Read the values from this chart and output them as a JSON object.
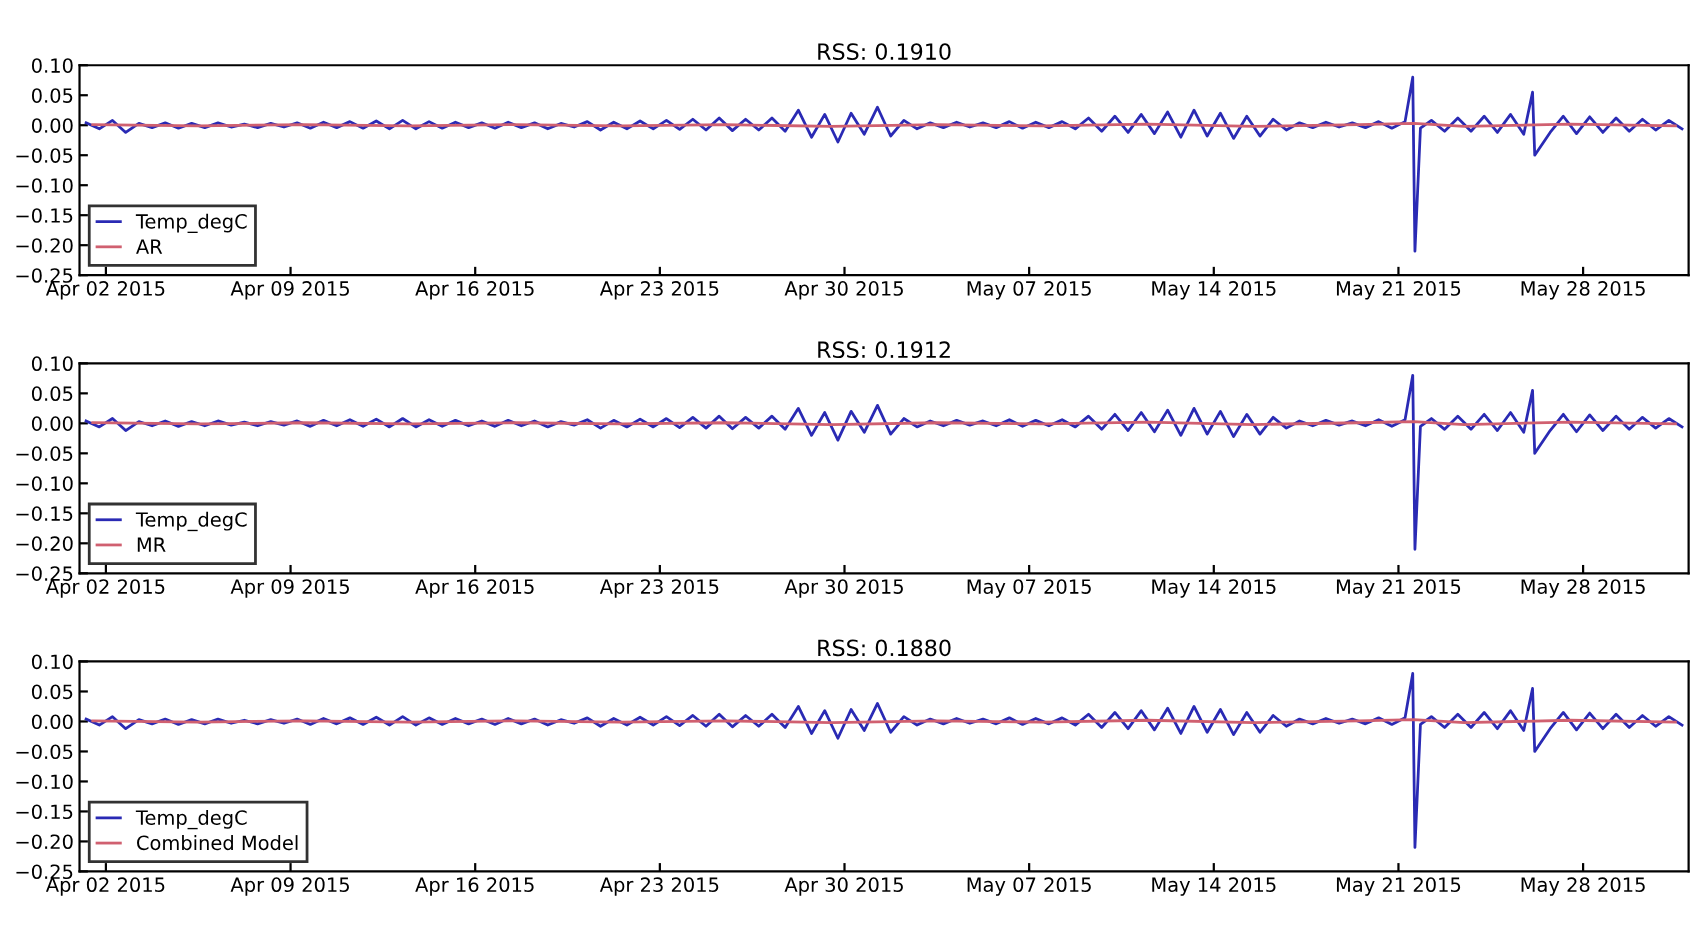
{
  "chart_data": [
    {
      "type": "line",
      "title": "RSS: 0.1910",
      "legend": "lower left",
      "grid": false,
      "xlim": [
        "2015-04-01",
        "2015-06-01"
      ],
      "ylim": [
        -0.25,
        0.1
      ],
      "xticks": [
        {
          "value": "2015-04-02",
          "label": "Apr 02 2015"
        },
        {
          "value": "2015-04-09",
          "label": "Apr 09 2015"
        },
        {
          "value": "2015-04-16",
          "label": "Apr 16 2015"
        },
        {
          "value": "2015-04-23",
          "label": "Apr 23 2015"
        },
        {
          "value": "2015-04-30",
          "label": "Apr 30 2015"
        },
        {
          "value": "2015-05-07",
          "label": "May 07 2015"
        },
        {
          "value": "2015-05-14",
          "label": "May 14 2015"
        },
        {
          "value": "2015-05-21",
          "label": "May 21 2015"
        },
        {
          "value": "2015-05-28",
          "label": "May 28 2015"
        }
      ],
      "yticks": [
        {
          "value": -0.25,
          "label": "−0.25"
        },
        {
          "value": -0.2,
          "label": "−0.20"
        },
        {
          "value": -0.15,
          "label": "−0.15"
        },
        {
          "value": -0.1,
          "label": "−0.10"
        },
        {
          "value": -0.05,
          "label": "−0.05"
        },
        {
          "value": 0,
          "label": "0.00"
        },
        {
          "value": 0.05,
          "label": "0.05"
        },
        {
          "value": 0.1,
          "label": "0.10"
        }
      ],
      "series": [
        {
          "name": "Temp_degC",
          "color": "#2a2ab4",
          "x": [
            "2015-04-01T06:00",
            "2015-04-01T18:00",
            "2015-04-02T06:00",
            "2015-04-02T18:00",
            "2015-04-03T06:00",
            "2015-04-03T18:00",
            "2015-04-04T06:00",
            "2015-04-04T18:00",
            "2015-04-05T06:00",
            "2015-04-05T18:00",
            "2015-04-06T06:00",
            "2015-04-06T18:00",
            "2015-04-07T06:00",
            "2015-04-07T18:00",
            "2015-04-08T06:00",
            "2015-04-08T18:00",
            "2015-04-09T06:00",
            "2015-04-09T18:00",
            "2015-04-10T06:00",
            "2015-04-10T18:00",
            "2015-04-11T06:00",
            "2015-04-11T18:00",
            "2015-04-12T06:00",
            "2015-04-12T18:00",
            "2015-04-13T06:00",
            "2015-04-13T18:00",
            "2015-04-14T06:00",
            "2015-04-14T18:00",
            "2015-04-15T06:00",
            "2015-04-15T18:00",
            "2015-04-16T06:00",
            "2015-04-16T18:00",
            "2015-04-17T06:00",
            "2015-04-17T18:00",
            "2015-04-18T06:00",
            "2015-04-18T18:00",
            "2015-04-19T06:00",
            "2015-04-19T18:00",
            "2015-04-20T06:00",
            "2015-04-20T18:00",
            "2015-04-21T06:00",
            "2015-04-21T18:00",
            "2015-04-22T06:00",
            "2015-04-22T18:00",
            "2015-04-23T06:00",
            "2015-04-23T18:00",
            "2015-04-24T06:00",
            "2015-04-24T18:00",
            "2015-04-25T06:00",
            "2015-04-25T18:00",
            "2015-04-26T06:00",
            "2015-04-26T18:00",
            "2015-04-27T06:00",
            "2015-04-27T18:00",
            "2015-04-28T06:00",
            "2015-04-28T18:00",
            "2015-04-29T06:00",
            "2015-04-29T18:00",
            "2015-04-30T06:00",
            "2015-04-30T18:00",
            "2015-05-01T06:00",
            "2015-05-01T18:00",
            "2015-05-02T06:00",
            "2015-05-02T18:00",
            "2015-05-03T06:00",
            "2015-05-03T18:00",
            "2015-05-04T06:00",
            "2015-05-04T18:00",
            "2015-05-05T06:00",
            "2015-05-05T18:00",
            "2015-05-06T06:00",
            "2015-05-06T18:00",
            "2015-05-07T06:00",
            "2015-05-07T18:00",
            "2015-05-08T06:00",
            "2015-05-08T18:00",
            "2015-05-09T06:00",
            "2015-05-09T18:00",
            "2015-05-10T06:00",
            "2015-05-10T18:00",
            "2015-05-11T06:00",
            "2015-05-11T18:00",
            "2015-05-12T06:00",
            "2015-05-12T18:00",
            "2015-05-13T06:00",
            "2015-05-13T18:00",
            "2015-05-14T06:00",
            "2015-05-14T18:00",
            "2015-05-15T06:00",
            "2015-05-15T18:00",
            "2015-05-16T06:00",
            "2015-05-16T18:00",
            "2015-05-17T06:00",
            "2015-05-17T18:00",
            "2015-05-18T06:00",
            "2015-05-18T18:00",
            "2015-05-19T06:00",
            "2015-05-19T18:00",
            "2015-05-20T06:00",
            "2015-05-20T18:00",
            "2015-05-21T06:00",
            "2015-05-21T13:00",
            "2015-05-21T15:00",
            "2015-05-21T20:00",
            "2015-05-22T06:00",
            "2015-05-22T18:00",
            "2015-05-23T06:00",
            "2015-05-23T18:00",
            "2015-05-24T06:00",
            "2015-05-24T18:00",
            "2015-05-25T06:00",
            "2015-05-25T18:00",
            "2015-05-26T02:00",
            "2015-05-26T04:00",
            "2015-05-26T18:00",
            "2015-05-27T06:00",
            "2015-05-27T18:00",
            "2015-05-28T06:00",
            "2015-05-28T18:00",
            "2015-05-29T06:00",
            "2015-05-29T18:00",
            "2015-05-30T06:00",
            "2015-05-30T18:00",
            "2015-05-31T06:00",
            "2015-05-31T18:00"
          ],
          "values": [
            0.004,
            -0.006,
            0.008,
            -0.012,
            0.003,
            -0.004,
            0.004,
            -0.005,
            0.003,
            -0.004,
            0.004,
            -0.003,
            0.002,
            -0.004,
            0.003,
            -0.003,
            0.004,
            -0.005,
            0.005,
            -0.004,
            0.006,
            -0.005,
            0.007,
            -0.006,
            0.008,
            -0.006,
            0.006,
            -0.005,
            0.005,
            -0.004,
            0.004,
            -0.005,
            0.005,
            -0.004,
            0.004,
            -0.006,
            0.003,
            -0.003,
            0.006,
            -0.008,
            0.005,
            -0.006,
            0.007,
            -0.006,
            0.008,
            -0.007,
            0.01,
            -0.008,
            0.012,
            -0.009,
            0.01,
            -0.008,
            0.012,
            -0.01,
            0.025,
            -0.02,
            0.018,
            -0.028,
            0.02,
            -0.015,
            0.03,
            -0.018,
            0.008,
            -0.006,
            0.004,
            -0.004,
            0.005,
            -0.003,
            0.004,
            -0.004,
            0.006,
            -0.005,
            0.005,
            -0.004,
            0.006,
            -0.006,
            0.012,
            -0.01,
            0.015,
            -0.012,
            0.018,
            -0.014,
            0.022,
            -0.02,
            0.025,
            -0.018,
            0.02,
            -0.022,
            0.015,
            -0.018,
            0.01,
            -0.008,
            0.004,
            -0.004,
            0.005,
            -0.003,
            0.004,
            -0.004,
            0.006,
            -0.005,
            0.006,
            0.08,
            -0.21,
            -0.005,
            0.008,
            -0.01,
            0.012,
            -0.01,
            0.015,
            -0.012,
            0.018,
            -0.015,
            0.055,
            -0.05,
            -0.012,
            0.015,
            -0.014,
            0.014,
            -0.012,
            0.012,
            -0.01,
            0.01,
            -0.008,
            0.008,
            -0.006
          ]
        },
        {
          "name": "AR",
          "color": "#d06070",
          "x": [
            "2015-04-01T12:00",
            "2015-04-05T12:00",
            "2015-04-09T12:00",
            "2015-04-13T12:00",
            "2015-04-17T12:00",
            "2015-04-21T12:00",
            "2015-04-25T12:00",
            "2015-04-29T12:00",
            "2015-05-03T12:00",
            "2015-05-07T12:00",
            "2015-05-11T12:00",
            "2015-05-15T12:00",
            "2015-05-19T12:00",
            "2015-05-21T14:00",
            "2015-05-23T12:00",
            "2015-05-27T12:00",
            "2015-05-31T12:00"
          ],
          "values": [
            0.001,
            -0.001,
            0.001,
            -0.001,
            0.001,
            -0.001,
            0.001,
            -0.002,
            0.001,
            -0.001,
            0.002,
            -0.002,
            0.001,
            0.003,
            -0.002,
            0.002,
            -0.001
          ]
        }
      ]
    },
    {
      "type": "line",
      "title": "RSS: 0.1912",
      "legend": "lower left",
      "grid": false,
      "xlim": [
        "2015-04-01",
        "2015-06-01"
      ],
      "ylim": [
        -0.25,
        0.1
      ],
      "xticks": [
        {
          "value": "2015-04-02",
          "label": "Apr 02 2015"
        },
        {
          "value": "2015-04-09",
          "label": "Apr 09 2015"
        },
        {
          "value": "2015-04-16",
          "label": "Apr 16 2015"
        },
        {
          "value": "2015-04-23",
          "label": "Apr 23 2015"
        },
        {
          "value": "2015-04-30",
          "label": "Apr 30 2015"
        },
        {
          "value": "2015-05-07",
          "label": "May 07 2015"
        },
        {
          "value": "2015-05-14",
          "label": "May 14 2015"
        },
        {
          "value": "2015-05-21",
          "label": "May 21 2015"
        },
        {
          "value": "2015-05-28",
          "label": "May 28 2015"
        }
      ],
      "yticks": [
        {
          "value": -0.25,
          "label": "−0.25"
        },
        {
          "value": -0.2,
          "label": "−0.20"
        },
        {
          "value": -0.15,
          "label": "−0.15"
        },
        {
          "value": -0.1,
          "label": "−0.10"
        },
        {
          "value": -0.05,
          "label": "−0.05"
        },
        {
          "value": 0,
          "label": "0.00"
        },
        {
          "value": 0.05,
          "label": "0.05"
        },
        {
          "value": 0.1,
          "label": "0.10"
        }
      ],
      "series": [
        {
          "name": "Temp_degC",
          "color": "#2a2ab4",
          "x": [
            "2015-04-01T06:00",
            "2015-04-01T18:00",
            "2015-04-02T06:00",
            "2015-04-02T18:00",
            "2015-04-03T06:00",
            "2015-04-03T18:00",
            "2015-04-04T06:00",
            "2015-04-04T18:00",
            "2015-04-05T06:00",
            "2015-04-05T18:00",
            "2015-04-06T06:00",
            "2015-04-06T18:00",
            "2015-04-07T06:00",
            "2015-04-07T18:00",
            "2015-04-08T06:00",
            "2015-04-08T18:00",
            "2015-04-09T06:00",
            "2015-04-09T18:00",
            "2015-04-10T06:00",
            "2015-04-10T18:00",
            "2015-04-11T06:00",
            "2015-04-11T18:00",
            "2015-04-12T06:00",
            "2015-04-12T18:00",
            "2015-04-13T06:00",
            "2015-04-13T18:00",
            "2015-04-14T06:00",
            "2015-04-14T18:00",
            "2015-04-15T06:00",
            "2015-04-15T18:00",
            "2015-04-16T06:00",
            "2015-04-16T18:00",
            "2015-04-17T06:00",
            "2015-04-17T18:00",
            "2015-04-18T06:00",
            "2015-04-18T18:00",
            "2015-04-19T06:00",
            "2015-04-19T18:00",
            "2015-04-20T06:00",
            "2015-04-20T18:00",
            "2015-04-21T06:00",
            "2015-04-21T18:00",
            "2015-04-22T06:00",
            "2015-04-22T18:00",
            "2015-04-23T06:00",
            "2015-04-23T18:00",
            "2015-04-24T06:00",
            "2015-04-24T18:00",
            "2015-04-25T06:00",
            "2015-04-25T18:00",
            "2015-04-26T06:00",
            "2015-04-26T18:00",
            "2015-04-27T06:00",
            "2015-04-27T18:00",
            "2015-04-28T06:00",
            "2015-04-28T18:00",
            "2015-04-29T06:00",
            "2015-04-29T18:00",
            "2015-04-30T06:00",
            "2015-04-30T18:00",
            "2015-05-01T06:00",
            "2015-05-01T18:00",
            "2015-05-02T06:00",
            "2015-05-02T18:00",
            "2015-05-03T06:00",
            "2015-05-03T18:00",
            "2015-05-04T06:00",
            "2015-05-04T18:00",
            "2015-05-05T06:00",
            "2015-05-05T18:00",
            "2015-05-06T06:00",
            "2015-05-06T18:00",
            "2015-05-07T06:00",
            "2015-05-07T18:00",
            "2015-05-08T06:00",
            "2015-05-08T18:00",
            "2015-05-09T06:00",
            "2015-05-09T18:00",
            "2015-05-10T06:00",
            "2015-05-10T18:00",
            "2015-05-11T06:00",
            "2015-05-11T18:00",
            "2015-05-12T06:00",
            "2015-05-12T18:00",
            "2015-05-13T06:00",
            "2015-05-13T18:00",
            "2015-05-14T06:00",
            "2015-05-14T18:00",
            "2015-05-15T06:00",
            "2015-05-15T18:00",
            "2015-05-16T06:00",
            "2015-05-16T18:00",
            "2015-05-17T06:00",
            "2015-05-17T18:00",
            "2015-05-18T06:00",
            "2015-05-18T18:00",
            "2015-05-19T06:00",
            "2015-05-19T18:00",
            "2015-05-20T06:00",
            "2015-05-20T18:00",
            "2015-05-21T06:00",
            "2015-05-21T13:00",
            "2015-05-21T15:00",
            "2015-05-21T20:00",
            "2015-05-22T06:00",
            "2015-05-22T18:00",
            "2015-05-23T06:00",
            "2015-05-23T18:00",
            "2015-05-24T06:00",
            "2015-05-24T18:00",
            "2015-05-25T06:00",
            "2015-05-25T18:00",
            "2015-05-26T02:00",
            "2015-05-26T04:00",
            "2015-05-26T18:00",
            "2015-05-27T06:00",
            "2015-05-27T18:00",
            "2015-05-28T06:00",
            "2015-05-28T18:00",
            "2015-05-29T06:00",
            "2015-05-29T18:00",
            "2015-05-30T06:00",
            "2015-05-30T18:00",
            "2015-05-31T06:00",
            "2015-05-31T18:00"
          ],
          "values": [
            0.004,
            -0.006,
            0.008,
            -0.012,
            0.003,
            -0.004,
            0.004,
            -0.005,
            0.003,
            -0.004,
            0.004,
            -0.003,
            0.002,
            -0.004,
            0.003,
            -0.003,
            0.004,
            -0.005,
            0.005,
            -0.004,
            0.006,
            -0.005,
            0.007,
            -0.006,
            0.008,
            -0.006,
            0.006,
            -0.005,
            0.005,
            -0.004,
            0.004,
            -0.005,
            0.005,
            -0.004,
            0.004,
            -0.006,
            0.003,
            -0.003,
            0.006,
            -0.008,
            0.005,
            -0.006,
            0.007,
            -0.006,
            0.008,
            -0.007,
            0.01,
            -0.008,
            0.012,
            -0.009,
            0.01,
            -0.008,
            0.012,
            -0.01,
            0.025,
            -0.02,
            0.018,
            -0.028,
            0.02,
            -0.015,
            0.03,
            -0.018,
            0.008,
            -0.006,
            0.004,
            -0.004,
            0.005,
            -0.003,
            0.004,
            -0.004,
            0.006,
            -0.005,
            0.005,
            -0.004,
            0.006,
            -0.006,
            0.012,
            -0.01,
            0.015,
            -0.012,
            0.018,
            -0.014,
            0.022,
            -0.02,
            0.025,
            -0.018,
            0.02,
            -0.022,
            0.015,
            -0.018,
            0.01,
            -0.008,
            0.004,
            -0.004,
            0.005,
            -0.003,
            0.004,
            -0.004,
            0.006,
            -0.005,
            0.006,
            0.08,
            -0.21,
            -0.005,
            0.008,
            -0.01,
            0.012,
            -0.01,
            0.015,
            -0.012,
            0.018,
            -0.015,
            0.055,
            -0.05,
            -0.012,
            0.015,
            -0.014,
            0.014,
            -0.012,
            0.012,
            -0.01,
            0.01,
            -0.008,
            0.008,
            -0.006
          ]
        },
        {
          "name": "MR",
          "color": "#d06070",
          "x": [
            "2015-04-01T12:00",
            "2015-04-05T12:00",
            "2015-04-09T12:00",
            "2015-04-13T12:00",
            "2015-04-17T12:00",
            "2015-04-21T12:00",
            "2015-04-25T12:00",
            "2015-04-29T12:00",
            "2015-05-03T12:00",
            "2015-05-07T12:00",
            "2015-05-11T12:00",
            "2015-05-15T12:00",
            "2015-05-19T12:00",
            "2015-05-21T14:00",
            "2015-05-23T12:00",
            "2015-05-27T12:00",
            "2015-05-31T12:00"
          ],
          "values": [
            0.001,
            -0.001,
            0.001,
            -0.001,
            0.001,
            -0.001,
            0.001,
            -0.002,
            0.001,
            -0.001,
            0.002,
            -0.002,
            0.001,
            0.003,
            -0.002,
            0.002,
            -0.001
          ]
        }
      ]
    },
    {
      "type": "line",
      "title": "RSS: 0.1880",
      "legend": "lower left",
      "grid": false,
      "xlim": [
        "2015-04-01",
        "2015-06-01"
      ],
      "ylim": [
        -0.25,
        0.1
      ],
      "xticks": [
        {
          "value": "2015-04-02",
          "label": "Apr 02 2015"
        },
        {
          "value": "2015-04-09",
          "label": "Apr 09 2015"
        },
        {
          "value": "2015-04-16",
          "label": "Apr 16 2015"
        },
        {
          "value": "2015-04-23",
          "label": "Apr 23 2015"
        },
        {
          "value": "2015-04-30",
          "label": "Apr 30 2015"
        },
        {
          "value": "2015-05-07",
          "label": "May 07 2015"
        },
        {
          "value": "2015-05-14",
          "label": "May 14 2015"
        },
        {
          "value": "2015-05-21",
          "label": "May 21 2015"
        },
        {
          "value": "2015-05-28",
          "label": "May 28 2015"
        }
      ],
      "yticks": [
        {
          "value": -0.25,
          "label": "−0.25"
        },
        {
          "value": -0.2,
          "label": "−0.20"
        },
        {
          "value": -0.15,
          "label": "−0.15"
        },
        {
          "value": -0.1,
          "label": "−0.10"
        },
        {
          "value": -0.05,
          "label": "−0.05"
        },
        {
          "value": 0,
          "label": "0.00"
        },
        {
          "value": 0.05,
          "label": "0.05"
        },
        {
          "value": 0.1,
          "label": "0.10"
        }
      ],
      "series": [
        {
          "name": "Temp_degC",
          "color": "#2a2ab4",
          "x": [
            "2015-04-01T06:00",
            "2015-04-01T18:00",
            "2015-04-02T06:00",
            "2015-04-02T18:00",
            "2015-04-03T06:00",
            "2015-04-03T18:00",
            "2015-04-04T06:00",
            "2015-04-04T18:00",
            "2015-04-05T06:00",
            "2015-04-05T18:00",
            "2015-04-06T06:00",
            "2015-04-06T18:00",
            "2015-04-07T06:00",
            "2015-04-07T18:00",
            "2015-04-08T06:00",
            "2015-04-08T18:00",
            "2015-04-09T06:00",
            "2015-04-09T18:00",
            "2015-04-10T06:00",
            "2015-04-10T18:00",
            "2015-04-11T06:00",
            "2015-04-11T18:00",
            "2015-04-12T06:00",
            "2015-04-12T18:00",
            "2015-04-13T06:00",
            "2015-04-13T18:00",
            "2015-04-14T06:00",
            "2015-04-14T18:00",
            "2015-04-15T06:00",
            "2015-04-15T18:00",
            "2015-04-16T06:00",
            "2015-04-16T18:00",
            "2015-04-17T06:00",
            "2015-04-17T18:00",
            "2015-04-18T06:00",
            "2015-04-18T18:00",
            "2015-04-19T06:00",
            "2015-04-19T18:00",
            "2015-04-20T06:00",
            "2015-04-20T18:00",
            "2015-04-21T06:00",
            "2015-04-21T18:00",
            "2015-04-22T06:00",
            "2015-04-22T18:00",
            "2015-04-23T06:00",
            "2015-04-23T18:00",
            "2015-04-24T06:00",
            "2015-04-24T18:00",
            "2015-04-25T06:00",
            "2015-04-25T18:00",
            "2015-04-26T06:00",
            "2015-04-26T18:00",
            "2015-04-27T06:00",
            "2015-04-27T18:00",
            "2015-04-28T06:00",
            "2015-04-28T18:00",
            "2015-04-29T06:00",
            "2015-04-29T18:00",
            "2015-04-30T06:00",
            "2015-04-30T18:00",
            "2015-05-01T06:00",
            "2015-05-01T18:00",
            "2015-05-02T06:00",
            "2015-05-02T18:00",
            "2015-05-03T06:00",
            "2015-05-03T18:00",
            "2015-05-04T06:00",
            "2015-05-04T18:00",
            "2015-05-05T06:00",
            "2015-05-05T18:00",
            "2015-05-06T06:00",
            "2015-05-06T18:00",
            "2015-05-07T06:00",
            "2015-05-07T18:00",
            "2015-05-08T06:00",
            "2015-05-08T18:00",
            "2015-05-09T06:00",
            "2015-05-09T18:00",
            "2015-05-10T06:00",
            "2015-05-10T18:00",
            "2015-05-11T06:00",
            "2015-05-11T18:00",
            "2015-05-12T06:00",
            "2015-05-12T18:00",
            "2015-05-13T06:00",
            "2015-05-13T18:00",
            "2015-05-14T06:00",
            "2015-05-14T18:00",
            "2015-05-15T06:00",
            "2015-05-15T18:00",
            "2015-05-16T06:00",
            "2015-05-16T18:00",
            "2015-05-17T06:00",
            "2015-05-17T18:00",
            "2015-05-18T06:00",
            "2015-05-18T18:00",
            "2015-05-19T06:00",
            "2015-05-19T18:00",
            "2015-05-20T06:00",
            "2015-05-20T18:00",
            "2015-05-21T06:00",
            "2015-05-21T13:00",
            "2015-05-21T15:00",
            "2015-05-21T20:00",
            "2015-05-22T06:00",
            "2015-05-22T18:00",
            "2015-05-23T06:00",
            "2015-05-23T18:00",
            "2015-05-24T06:00",
            "2015-05-24T18:00",
            "2015-05-25T06:00",
            "2015-05-25T18:00",
            "2015-05-26T02:00",
            "2015-05-26T04:00",
            "2015-05-26T18:00",
            "2015-05-27T06:00",
            "2015-05-27T18:00",
            "2015-05-28T06:00",
            "2015-05-28T18:00",
            "2015-05-29T06:00",
            "2015-05-29T18:00",
            "2015-05-30T06:00",
            "2015-05-30T18:00",
            "2015-05-31T06:00",
            "2015-05-31T18:00"
          ],
          "values": [
            0.004,
            -0.006,
            0.008,
            -0.012,
            0.003,
            -0.004,
            0.004,
            -0.005,
            0.003,
            -0.004,
            0.004,
            -0.003,
            0.002,
            -0.004,
            0.003,
            -0.003,
            0.004,
            -0.005,
            0.005,
            -0.004,
            0.006,
            -0.005,
            0.007,
            -0.006,
            0.008,
            -0.006,
            0.006,
            -0.005,
            0.005,
            -0.004,
            0.004,
            -0.005,
            0.005,
            -0.004,
            0.004,
            -0.006,
            0.003,
            -0.003,
            0.006,
            -0.008,
            0.005,
            -0.006,
            0.007,
            -0.006,
            0.008,
            -0.007,
            0.01,
            -0.008,
            0.012,
            -0.009,
            0.01,
            -0.008,
            0.012,
            -0.01,
            0.025,
            -0.02,
            0.018,
            -0.028,
            0.02,
            -0.015,
            0.03,
            -0.018,
            0.008,
            -0.006,
            0.004,
            -0.004,
            0.005,
            -0.003,
            0.004,
            -0.004,
            0.006,
            -0.005,
            0.005,
            -0.004,
            0.006,
            -0.006,
            0.012,
            -0.01,
            0.015,
            -0.012,
            0.018,
            -0.014,
            0.022,
            -0.02,
            0.025,
            -0.018,
            0.02,
            -0.022,
            0.015,
            -0.018,
            0.01,
            -0.008,
            0.004,
            -0.004,
            0.005,
            -0.003,
            0.004,
            -0.004,
            0.006,
            -0.005,
            0.006,
            0.08,
            -0.21,
            -0.005,
            0.008,
            -0.01,
            0.012,
            -0.01,
            0.015,
            -0.012,
            0.018,
            -0.015,
            0.055,
            -0.05,
            -0.012,
            0.015,
            -0.014,
            0.014,
            -0.012,
            0.012,
            -0.01,
            0.01,
            -0.008,
            0.008,
            -0.006
          ]
        },
        {
          "name": "Combined Model",
          "color": "#d06070",
          "x": [
            "2015-04-01T12:00",
            "2015-04-05T12:00",
            "2015-04-09T12:00",
            "2015-04-13T12:00",
            "2015-04-17T12:00",
            "2015-04-21T12:00",
            "2015-04-25T12:00",
            "2015-04-29T12:00",
            "2015-05-03T12:00",
            "2015-05-07T12:00",
            "2015-05-11T12:00",
            "2015-05-15T12:00",
            "2015-05-19T12:00",
            "2015-05-21T14:00",
            "2015-05-23T12:00",
            "2015-05-27T12:00",
            "2015-05-31T12:00"
          ],
          "values": [
            0.001,
            -0.001,
            0.001,
            -0.001,
            0.001,
            -0.001,
            0.001,
            -0.002,
            0.001,
            -0.001,
            0.002,
            -0.002,
            0.001,
            0.003,
            -0.002,
            0.002,
            -0.001
          ]
        }
      ]
    }
  ]
}
